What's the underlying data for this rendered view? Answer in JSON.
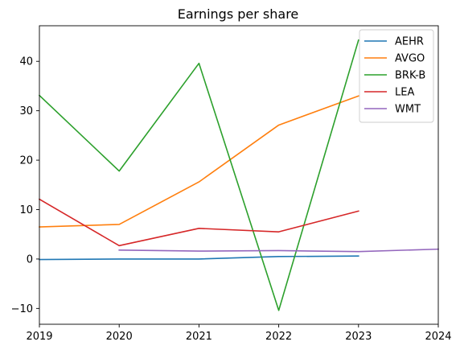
{
  "chart_data": {
    "type": "line",
    "title": "Earnings per share",
    "xlabel": "",
    "ylabel": "",
    "xlim": [
      2019,
      2024
    ],
    "ylim": [
      -13.2,
      47.2
    ],
    "x_ticks": [
      "2019",
      "2020",
      "2021",
      "2022",
      "2023",
      "2024"
    ],
    "y_ticks": [
      -10,
      0,
      10,
      20,
      30,
      40
    ],
    "y_tick_labels": [
      "−10",
      "0",
      "10",
      "20",
      "30",
      "40"
    ],
    "grid": false,
    "legend_position": "top-right",
    "series": [
      {
        "name": "AEHR",
        "color": "#1f77b4",
        "points": [
          [
            2019,
            -0.1
          ],
          [
            2020,
            0.0
          ],
          [
            2021,
            0.0
          ],
          [
            2022,
            0.5
          ],
          [
            2023,
            0.6
          ]
        ]
      },
      {
        "name": "AVGO",
        "color": "#ff7f0e",
        "points": [
          [
            2019,
            6.5
          ],
          [
            2020,
            7.0
          ],
          [
            2021,
            15.6
          ],
          [
            2022,
            27.1
          ],
          [
            2023,
            33.0
          ]
        ]
      },
      {
        "name": "BRK-B",
        "color": "#2ca02c",
        "points": [
          [
            2019,
            33.1
          ],
          [
            2020,
            17.8
          ],
          [
            2021,
            39.6
          ],
          [
            2022,
            -10.4
          ],
          [
            2023,
            44.3
          ]
        ]
      },
      {
        "name": "LEA",
        "color": "#d62728",
        "points": [
          [
            2019,
            12.1
          ],
          [
            2020,
            2.7
          ],
          [
            2021,
            6.2
          ],
          [
            2022,
            5.5
          ],
          [
            2023,
            9.7
          ]
        ]
      },
      {
        "name": "WMT",
        "color": "#9467bd",
        "points": [
          [
            2020,
            1.8
          ],
          [
            2021,
            1.6
          ],
          [
            2022,
            1.7
          ],
          [
            2023,
            1.5
          ],
          [
            2024,
            2.0
          ]
        ]
      }
    ]
  }
}
